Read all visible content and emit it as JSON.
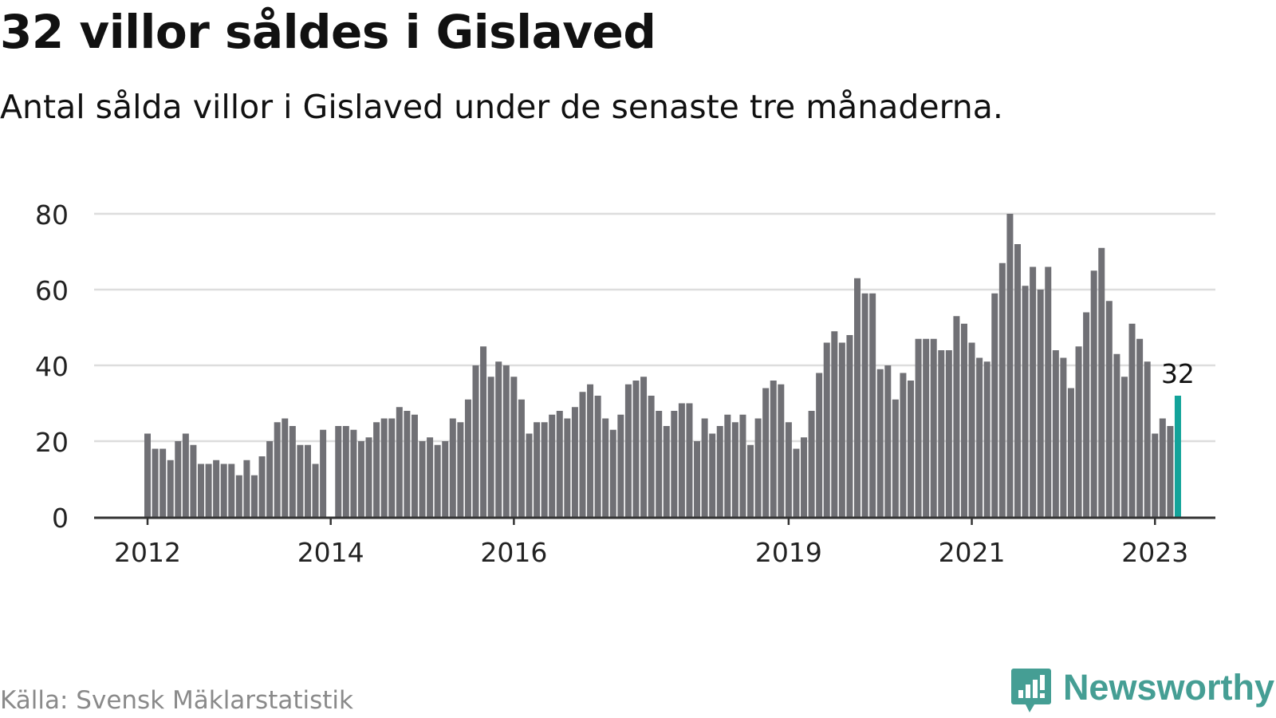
{
  "title": "32 villor såldes i Gislaved",
  "subtitle": "Antal sålda villor i Gislaved under de senaste tre månaderna.",
  "source": "Källa: Svensk Mäklarstatistik",
  "brand": {
    "name": "Newsworthy",
    "icon": "newsworthy-logo-icon",
    "color": "#459e94"
  },
  "colors": {
    "bar": "#707075",
    "highlight": "#13a39a",
    "grid": "#dddddd",
    "axis": "#333333"
  },
  "chart_data": {
    "type": "bar",
    "title": "32 villor såldes i Gislaved",
    "xlabel": "",
    "ylabel": "",
    "ylim": [
      0,
      80
    ],
    "yticks": [
      0,
      20,
      40,
      60,
      80
    ],
    "grid": true,
    "legend": "none",
    "x_start": "2012-01",
    "x_tick_labels": [
      {
        "label": "2012",
        "month": "2012-01"
      },
      {
        "label": "2014",
        "month": "2014-01"
      },
      {
        "label": "2016",
        "month": "2016-01"
      },
      {
        "label": "2019",
        "month": "2019-01"
      },
      {
        "label": "2021",
        "month": "2021-01"
      },
      {
        "label": "2023",
        "month": "2023-01"
      }
    ],
    "values": [
      22,
      18,
      18,
      15,
      20,
      22,
      19,
      14,
      14,
      15,
      14,
      14,
      11,
      15,
      11,
      16,
      20,
      25,
      26,
      24,
      19,
      19,
      14,
      23,
      null,
      24,
      24,
      23,
      20,
      21,
      25,
      26,
      26,
      29,
      28,
      27,
      20,
      21,
      19,
      20,
      26,
      25,
      31,
      40,
      45,
      37,
      41,
      40,
      37,
      31,
      22,
      25,
      25,
      27,
      28,
      26,
      29,
      33,
      35,
      32,
      26,
      23,
      27,
      35,
      36,
      37,
      32,
      28,
      24,
      28,
      30,
      30,
      20,
      26,
      22,
      24,
      27,
      25,
      27,
      19,
      26,
      34,
      36,
      35,
      25,
      18,
      21,
      28,
      38,
      46,
      49,
      46,
      48,
      63,
      59,
      59,
      39,
      40,
      31,
      38,
      36,
      47,
      47,
      47,
      44,
      44,
      53,
      51,
      46,
      42,
      41,
      59,
      67,
      80,
      72,
      61,
      66,
      60,
      66,
      44,
      42,
      34,
      45,
      54,
      65,
      71,
      57,
      43,
      37,
      51,
      47,
      41,
      22,
      26,
      24,
      32
    ],
    "highlight": {
      "month": "2023-04",
      "value": 32,
      "label": "32"
    }
  }
}
